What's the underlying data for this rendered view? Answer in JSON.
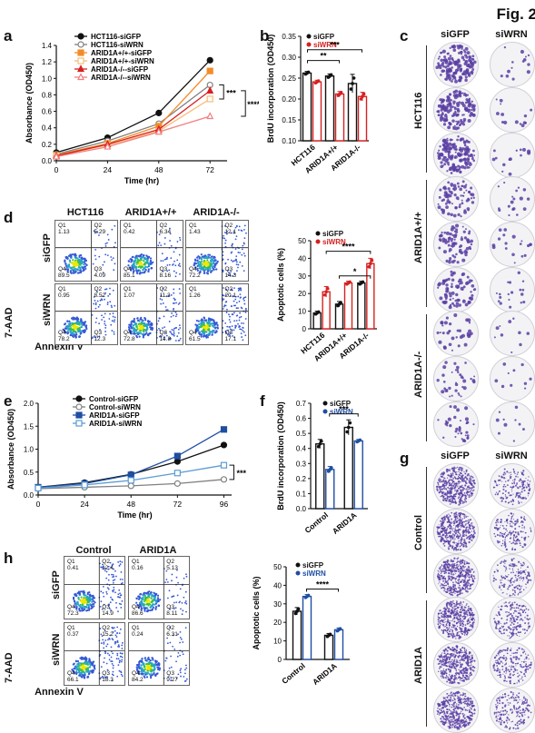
{
  "figure_label": "Fig. 2",
  "panels": {
    "a": {
      "letter": "a"
    },
    "b": {
      "letter": "b"
    },
    "c": {
      "letter": "c",
      "columns": [
        "siGFP",
        "siWRN"
      ],
      "rows": [
        "HCT116",
        "ARID1A+/+",
        "ARID1A-/-"
      ]
    },
    "d": {
      "letter": "d",
      "columns": [
        "HCT116",
        "ARID1A+/+",
        "ARID1A-/-"
      ],
      "rows": [
        "siGFP",
        "siWRN"
      ],
      "ylabel": "7-AAD",
      "xlabel": "Annexin V",
      "quadrants": [
        [
          [
            "1.13",
            "5.29",
            "89.5",
            "4.09"
          ],
          [
            "0.42",
            "6.34",
            "85.1",
            "8.16"
          ],
          [
            "1.43",
            "12.1",
            "72.2",
            "14.3"
          ]
        ],
        [
          [
            "0.95",
            "8.52",
            "78.2",
            "12.3"
          ],
          [
            "1.07",
            "11.3",
            "72.8",
            "14.8"
          ],
          [
            "1.26",
            "20.1",
            "61.5",
            "17.1"
          ]
        ]
      ]
    },
    "e": {
      "letter": "e"
    },
    "f": {
      "letter": "f"
    },
    "g": {
      "letter": "g",
      "columns": [
        "siGFP",
        "siWRN"
      ],
      "rows": [
        "Control",
        "ARID1A"
      ]
    },
    "h": {
      "letter": "h",
      "columns": [
        "Control",
        "ARID1A"
      ],
      "rows": [
        "siGFP",
        "siWRN"
      ],
      "ylabel": "7-AAD",
      "xlabel": "Annexin V",
      "quadrants": [
        [
          [
            "0.41",
            "12.4",
            "72.3",
            "14.9"
          ],
          [
            "0.16",
            "5.13",
            "86.6",
            "8.11"
          ]
        ],
        [
          [
            "0.37",
            "15.2",
            "66.1",
            "18.3"
          ],
          [
            "0.24",
            "6.31",
            "84.2",
            "9.27"
          ]
        ]
      ]
    }
  },
  "quadrant_names": [
    "Q1",
    "Q2",
    "Q4",
    "Q3"
  ],
  "colors": {
    "black": "#111111",
    "grey": "#808080",
    "orange": "#f28c28",
    "light_orange": "#f7bd7a",
    "red": "#d62020",
    "pink": "#f08080",
    "blue": "#1f4ea3",
    "light_blue": "#5b9bd5",
    "purple": "#5a3fa3"
  },
  "chart_data": [
    {
      "id": "a",
      "type": "line",
      "xlabel": "Time (hr)",
      "ylabel": "Absorbance (OD450)",
      "x": [
        0,
        24,
        48,
        72
      ],
      "xlim": [
        0,
        80
      ],
      "ylim": [
        0,
        1.4
      ],
      "xticks": [
        0,
        24,
        48,
        72
      ],
      "yticks": [
        0,
        0.2,
        0.4,
        0.6,
        0.8,
        1.0,
        1.2,
        1.4
      ],
      "series": [
        {
          "name": "HCT116-siGFP",
          "color": "#111111",
          "marker": "circle-filled",
          "values": [
            0.1,
            0.28,
            0.58,
            1.22
          ]
        },
        {
          "name": "HCT116-siWRN",
          "color": "#808080",
          "marker": "circle-open",
          "values": [
            0.08,
            0.24,
            0.45,
            0.92
          ]
        },
        {
          "name": "ARID1A+/+-siGFP",
          "color": "#f28c28",
          "marker": "square-filled",
          "values": [
            0.07,
            0.21,
            0.42,
            1.09
          ]
        },
        {
          "name": "ARID1A+/+-siWRN",
          "color": "#f7bd7a",
          "marker": "square-open",
          "values": [
            0.06,
            0.19,
            0.36,
            0.75
          ]
        },
        {
          "name": "ARID1A-/--siGFP",
          "color": "#d62020",
          "marker": "triangle-filled",
          "values": [
            0.06,
            0.2,
            0.38,
            0.85
          ]
        },
        {
          "name": "ARID1A-/--siWRN",
          "color": "#f08080",
          "marker": "triangle-open",
          "values": [
            0.05,
            0.17,
            0.35,
            0.54
          ]
        }
      ],
      "annotations": [
        "***",
        "****"
      ]
    },
    {
      "id": "b",
      "type": "bar",
      "ylabel": "BrdU incorporation (OD450)",
      "categories": [
        "HCT116",
        "ARID1A+/+",
        "ARID1A-/-"
      ],
      "ylim": [
        0.1,
        0.35
      ],
      "yticks": [
        0.1,
        0.15,
        0.2,
        0.25,
        0.3,
        0.35
      ],
      "series": [
        {
          "name": "siGFP",
          "color": "#111111",
          "values": [
            0.262,
            0.255,
            0.237
          ],
          "errors": [
            0.004,
            0.005,
            0.022
          ]
        },
        {
          "name": "siWRN",
          "color": "#d62020",
          "values": [
            0.241,
            0.212,
            0.206
          ],
          "errors": [
            0.004,
            0.006,
            0.01
          ]
        }
      ],
      "annotations": [
        "**",
        "***"
      ]
    },
    {
      "id": "d_bar",
      "type": "bar",
      "ylabel": "Apoptotic cells (%)",
      "categories": [
        "HCT116",
        "ARID1A+/+",
        "ARID1A-/-"
      ],
      "ylim": [
        0,
        50
      ],
      "yticks": [
        0,
        10,
        20,
        30,
        40,
        50
      ],
      "series": [
        {
          "name": "siGFP",
          "color": "#111111",
          "values": [
            9,
            14,
            26
          ],
          "errors": [
            1,
            1.5,
            1
          ]
        },
        {
          "name": "siWRN",
          "color": "#d62020",
          "values": [
            21,
            26,
            37
          ],
          "errors": [
            3,
            1,
            3
          ]
        }
      ],
      "annotations": [
        "*",
        "****"
      ]
    },
    {
      "id": "e",
      "type": "line",
      "xlabel": "Time (hr)",
      "ylabel": "Absorbance (OD450)",
      "x": [
        0,
        24,
        48,
        72,
        96
      ],
      "xlim": [
        0,
        100
      ],
      "ylim": [
        0,
        2.0
      ],
      "xticks": [
        0,
        24,
        48,
        72,
        96
      ],
      "yticks": [
        0,
        0.5,
        1.0,
        1.5,
        2.0
      ],
      "series": [
        {
          "name": "Control-siGFP",
          "color": "#111111",
          "marker": "circle-filled",
          "values": [
            0.17,
            0.27,
            0.45,
            0.73,
            1.09
          ]
        },
        {
          "name": "Control-siWRN",
          "color": "#808080",
          "marker": "circle-open",
          "values": [
            0.14,
            0.17,
            0.2,
            0.25,
            0.34
          ]
        },
        {
          "name": "ARID1A-siGFP",
          "color": "#1f4ea3",
          "marker": "square-filled",
          "values": [
            0.17,
            0.25,
            0.44,
            0.85,
            1.43
          ]
        },
        {
          "name": "ARID1A-siWRN",
          "color": "#5b9bd5",
          "marker": "square-open",
          "values": [
            0.15,
            0.22,
            0.32,
            0.48,
            0.65
          ]
        }
      ],
      "annotations": [
        "***"
      ]
    },
    {
      "id": "f",
      "type": "bar",
      "ylabel": "BrdU incorporation (OD450)",
      "categories": [
        "Control",
        "ARID1A"
      ],
      "ylim": [
        0,
        0.7
      ],
      "yticks": [
        0,
        0.1,
        0.2,
        0.3,
        0.4,
        0.5,
        0.6,
        0.7
      ],
      "series": [
        {
          "name": "siGFP",
          "color": "#111111",
          "values": [
            0.43,
            0.54
          ],
          "errors": [
            0.03,
            0.05
          ]
        },
        {
          "name": "siWRN",
          "color": "#1f4ea3",
          "values": [
            0.26,
            0.45
          ],
          "errors": [
            0.02,
            0.01
          ]
        }
      ],
      "annotations": [
        "***"
      ]
    },
    {
      "id": "h_bar",
      "type": "bar",
      "ylabel": "Apoptotic cells (%)",
      "categories": [
        "Control",
        "ARID1A"
      ],
      "ylim": [
        0,
        50
      ],
      "yticks": [
        0,
        10,
        20,
        30,
        40,
        50
      ],
      "series": [
        {
          "name": "siGFP",
          "color": "#111111",
          "values": [
            26,
            13
          ],
          "errors": [
            2,
            1
          ]
        },
        {
          "name": "siWRN",
          "color": "#1f4ea3",
          "values": [
            34,
            16
          ],
          "errors": [
            1,
            1
          ]
        }
      ],
      "annotations": [
        "****"
      ]
    }
  ]
}
